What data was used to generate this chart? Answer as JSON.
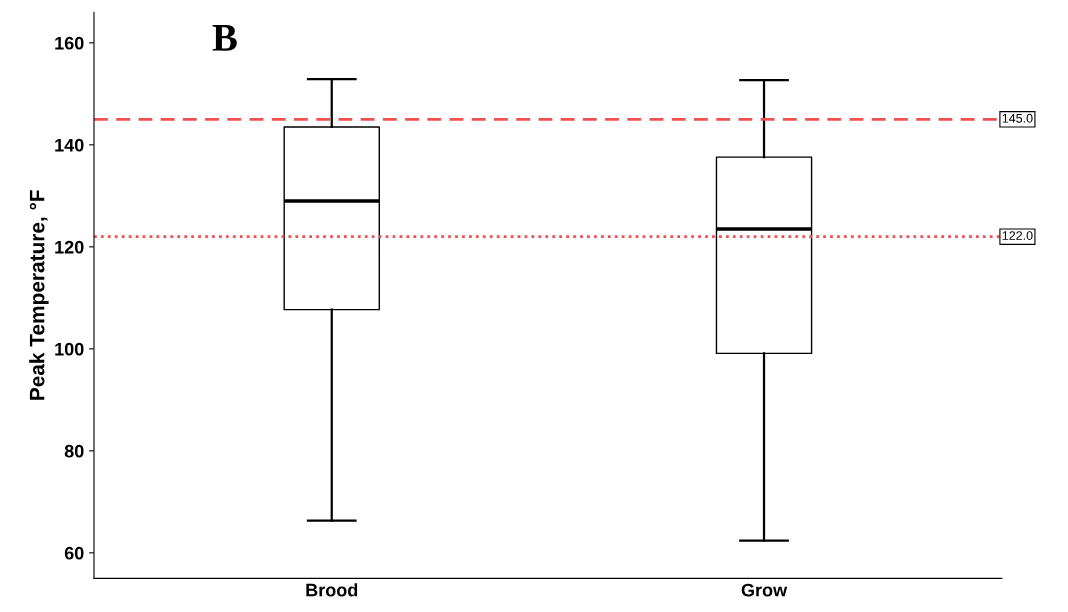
{
  "chart_data": {
    "type": "box",
    "ylabel": "Peak Temperature, °F",
    "categories": [
      "Brood",
      "Grow"
    ],
    "boxes": [
      {
        "low": 66.3,
        "q1": 107.7,
        "median": 129.0,
        "q3": 143.5,
        "high": 152.9
      },
      {
        "low": 62.4,
        "q1": 99.1,
        "median": 123.5,
        "q3": 137.6,
        "high": 152.7
      }
    ],
    "ylim": [
      55,
      166
    ],
    "yticks": [
      60,
      80,
      100,
      120,
      140,
      160
    ],
    "ref_lines": [
      {
        "axis": "y",
        "value": 145,
        "label": "145.0",
        "color": "#f05050",
        "line_style": "dashed"
      },
      {
        "axis": "y",
        "value": 122,
        "label": "122.0",
        "color": "#f05050",
        "line_style": "dotted"
      }
    ],
    "annotations": [
      "B"
    ],
    "grid": false,
    "legend": false
  }
}
